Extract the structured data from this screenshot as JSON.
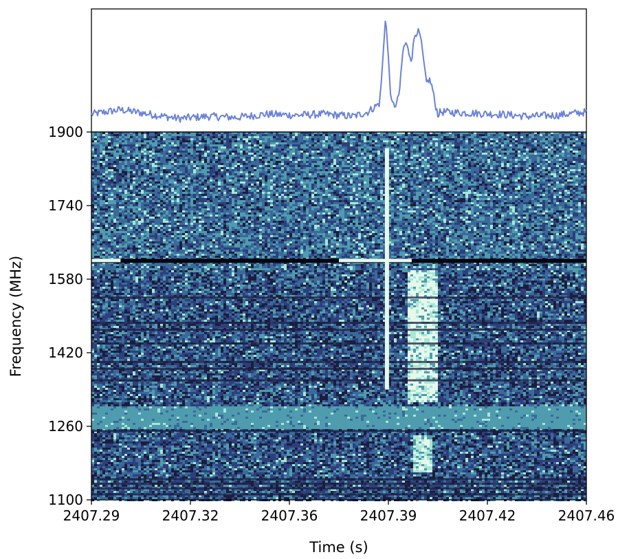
{
  "chart_data": [
    {
      "type": "line",
      "panel": "top",
      "title": "",
      "xlabel": "",
      "ylabel": "",
      "color": "#6b82d6",
      "x": [
        2407.29,
        2407.3,
        2407.31,
        2407.32,
        2407.33,
        2407.34,
        2407.35,
        2407.36,
        2407.37,
        2407.38,
        2407.385,
        2407.389,
        2407.39,
        2407.391,
        2407.392,
        2407.393,
        2407.394,
        2407.395,
        2407.396,
        2407.397,
        2407.398,
        2407.399,
        2407.4,
        2407.401,
        2407.402,
        2407.403,
        2407.404,
        2407.405,
        2407.406,
        2407.407,
        2407.408,
        2407.409,
        2407.41,
        2407.42,
        2407.43,
        2407.44,
        2407.45,
        2407.46
      ],
      "values": [
        0.1,
        0.14,
        0.1,
        0.06,
        0.08,
        0.07,
        0.1,
        0.09,
        0.1,
        0.08,
        0.12,
        0.2,
        0.55,
        1.0,
        0.6,
        0.2,
        0.18,
        0.2,
        0.35,
        0.68,
        0.75,
        0.66,
        0.6,
        0.82,
        0.86,
        0.8,
        0.6,
        0.38,
        0.42,
        0.35,
        0.2,
        0.1,
        0.12,
        0.11,
        0.1,
        0.08,
        0.09,
        0.12
      ],
      "xlim": [
        2407.29,
        2407.46
      ]
    },
    {
      "type": "heatmap",
      "panel": "bottom",
      "title": "",
      "xlabel": "Time (s)",
      "ylabel": "Frequency (MHz)",
      "xlim": [
        2407.29,
        2407.46
      ],
      "ylim": [
        1100,
        1900
      ],
      "xticks": [
        "2407.29",
        "2407.32",
        "2407.36",
        "2407.39",
        "2407.42",
        "2407.46"
      ],
      "yticks": [
        "1900",
        "1740",
        "1580",
        "1420",
        "1260",
        "1100"
      ],
      "colormap": [
        "#1c1d3e",
        "#2d3f7c",
        "#3a6a9a",
        "#4f9cae",
        "#a6e7d6",
        "#e6f8ec"
      ],
      "features": {
        "narrow_burst": {
          "time": 2407.3915,
          "freq_range": [
            1340,
            1865
          ]
        },
        "wide_burst": {
          "time_range": [
            2407.398,
            2407.4085
          ],
          "freq_range": [
            1315,
            1600
          ]
        },
        "wide_burst_low": {
          "time_range": [
            2407.4,
            2407.407
          ],
          "freq_range": [
            1160,
            1245
          ]
        },
        "rfi_line": {
          "freq": 1620,
          "bright_time_ranges": [
            [
              2407.29,
              2407.3
            ],
            [
              2407.375,
              2407.4
            ]
          ]
        },
        "smooth_band": {
          "freq_range": [
            1255,
            1305
          ]
        },
        "dark_bands": [
          1112,
          1125,
          1135,
          1145,
          1250,
          1360,
          1385,
          1400,
          1440,
          1470,
          1485,
          1540
        ]
      }
    }
  ]
}
